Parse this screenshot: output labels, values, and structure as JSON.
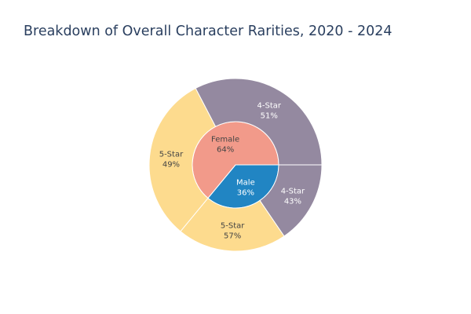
{
  "chart_data": {
    "type": "pie",
    "title": "Breakdown of Overall Character Rarities, 2020 - 2024",
    "inner": [
      {
        "label": "Female",
        "value": 64,
        "percent_text": "64%",
        "color": "#f29a8a",
        "text_color": "#444444"
      },
      {
        "label": "Male",
        "value": 36,
        "percent_text": "36%",
        "color": "#2185c3",
        "text_color": "#ffffff"
      }
    ],
    "outer": [
      {
        "parent": "Male",
        "label": "4-Star",
        "value": 15.48,
        "percent_text": "43%",
        "color": "#9489a0",
        "text_color": "#ffffff"
      },
      {
        "parent": "Male",
        "label": "5-Star",
        "value": 20.52,
        "percent_text": "57%",
        "color": "#fddb8e",
        "text_color": "#444444"
      },
      {
        "parent": "Female",
        "label": "5-Star",
        "value": 31.36,
        "percent_text": "49%",
        "color": "#fddb8e",
        "text_color": "#444444"
      },
      {
        "parent": "Female",
        "label": "4-Star",
        "value": 32.64,
        "percent_text": "51%",
        "color": "#9489a0",
        "text_color": "#ffffff"
      }
    ]
  }
}
